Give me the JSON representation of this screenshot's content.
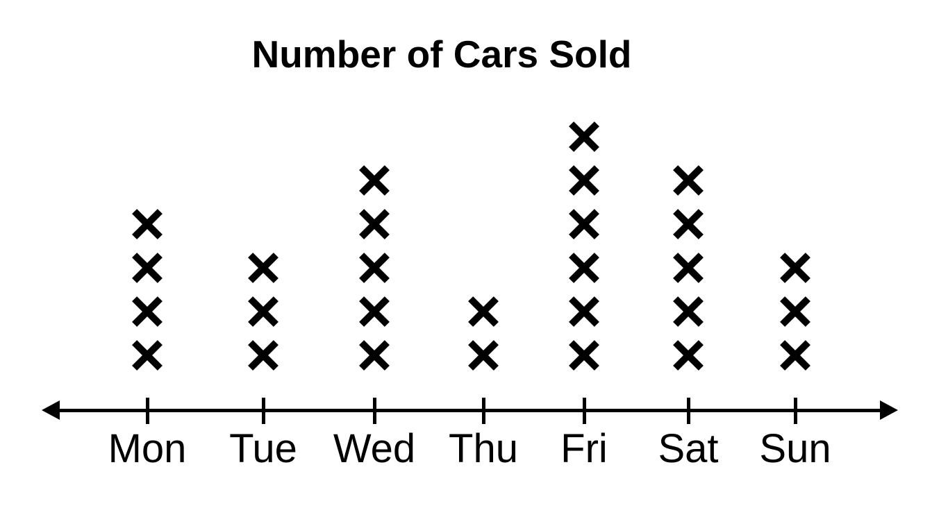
{
  "figure": {
    "background_color": "#ffffff",
    "ink_color": "#000000"
  },
  "chart_data": {
    "type": "scatter",
    "variant": "dot-plot-with-x-marks",
    "title": "Number of Cars Sold",
    "categories": [
      "Mon",
      "Tue",
      "Wed",
      "Thu",
      "Fri",
      "Sat",
      "Sun"
    ],
    "values": [
      4,
      3,
      5,
      2,
      6,
      5,
      3
    ],
    "marker": "x-cross",
    "marker_color": "#000000",
    "xlabel": "",
    "ylabel": "",
    "ylim": [
      0,
      6
    ],
    "gridlines": false,
    "legend_position": "none",
    "x_axis_arrows": "both-ends",
    "total_marks": 28
  }
}
